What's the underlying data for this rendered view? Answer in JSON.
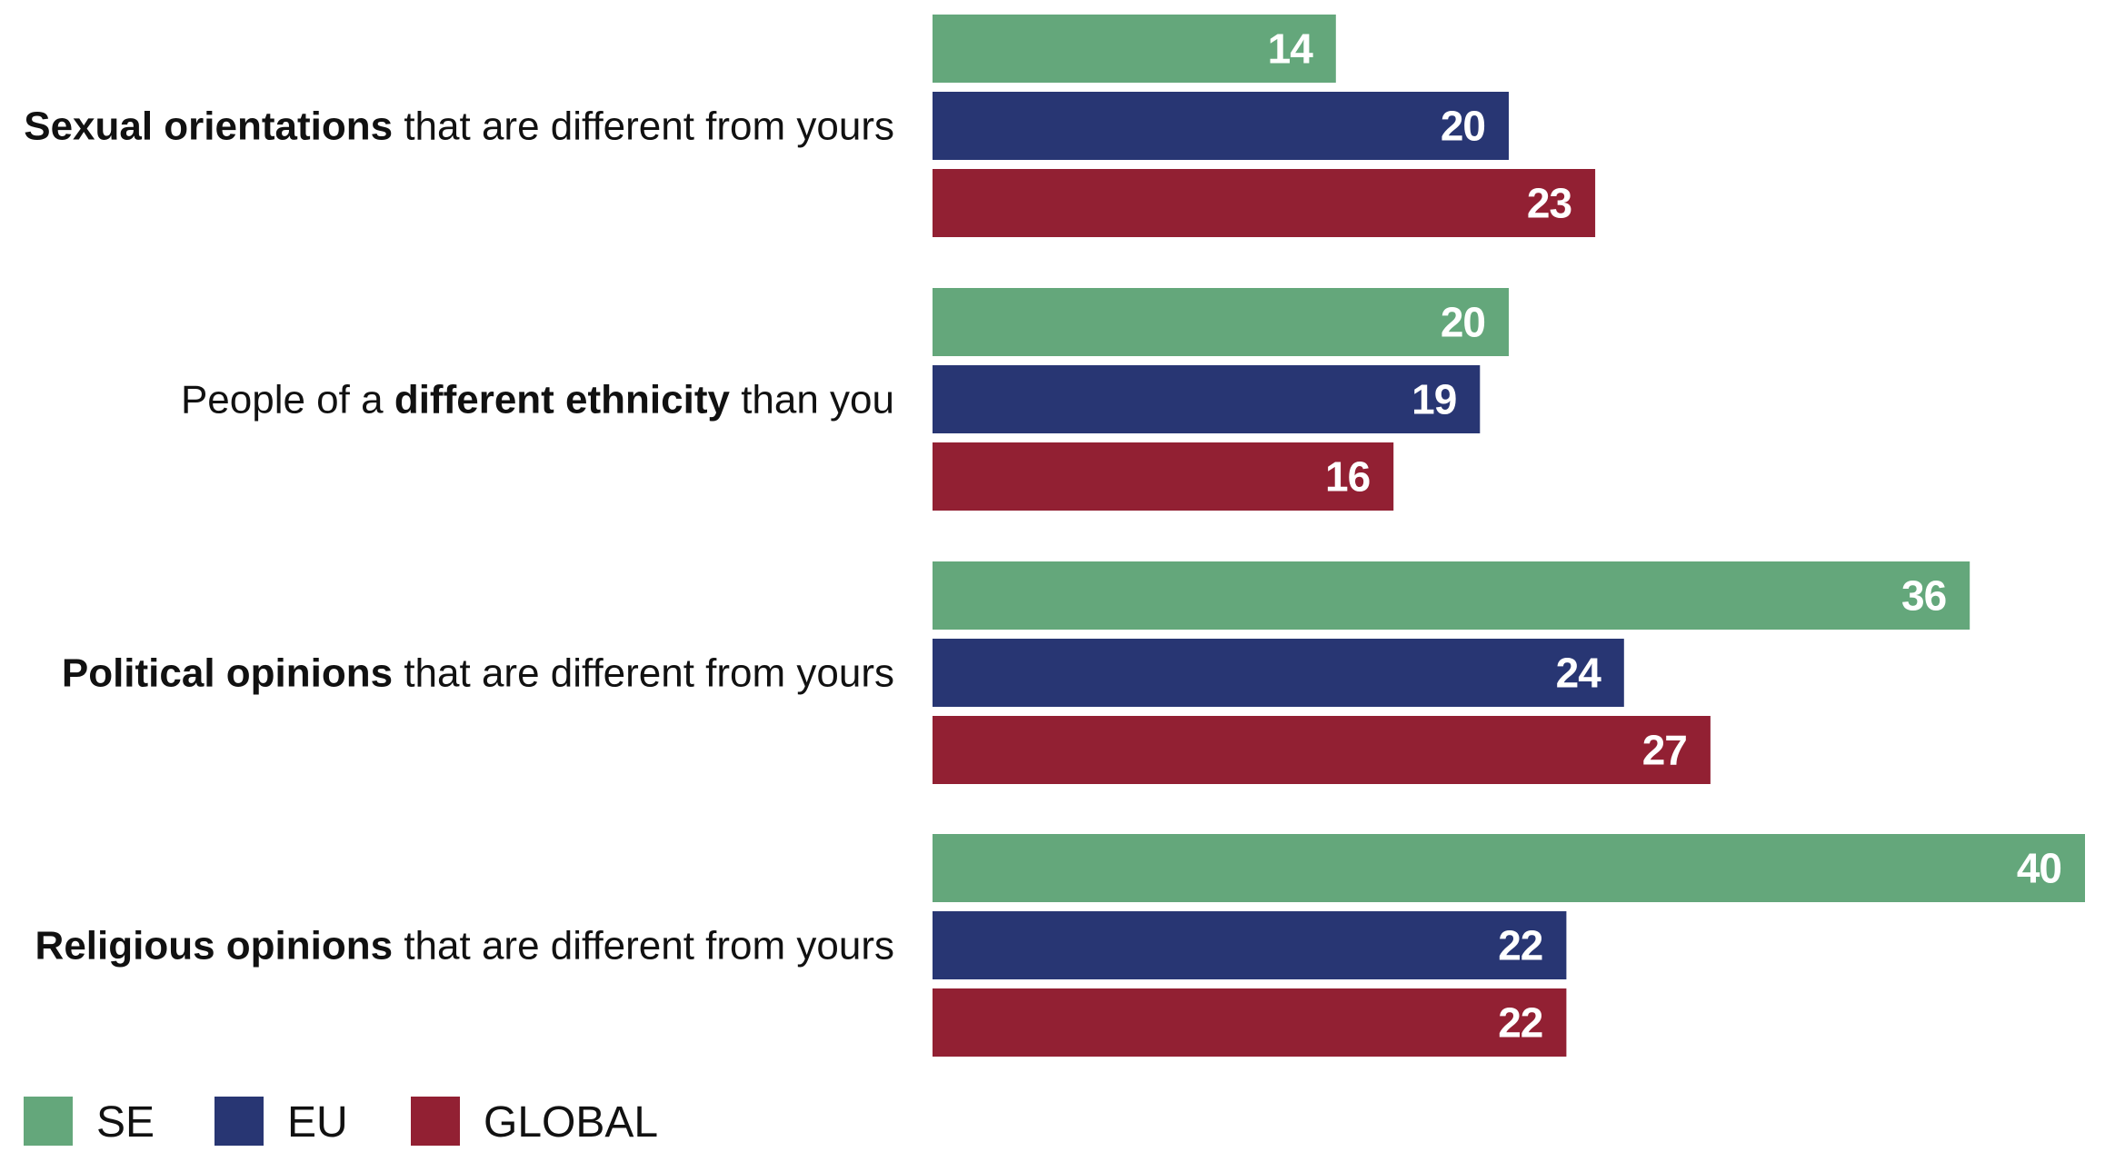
{
  "chart_data": {
    "type": "bar",
    "orientation": "horizontal",
    "categories": [
      [
        {
          "text": "Sexual orientations",
          "bold": true
        },
        {
          "text": " that are different from yours",
          "bold": false
        }
      ],
      [
        {
          "text": "People of a ",
          "bold": false
        },
        {
          "text": "different ethnicity",
          "bold": true
        },
        {
          "text": " than you",
          "bold": false
        }
      ],
      [
        {
          "text": "Political opinions",
          "bold": true
        },
        {
          "text": " that are different from yours",
          "bold": false
        }
      ],
      [
        {
          "text": "Religious opinions",
          "bold": true
        },
        {
          "text": " that are different from yours",
          "bold": false
        }
      ]
    ],
    "series": [
      {
        "name": "SE",
        "color": "#64A77B",
        "values": [
          14,
          20,
          36,
          40
        ]
      },
      {
        "name": "EU",
        "color": "#283673",
        "values": [
          20,
          19,
          24,
          22
        ]
      },
      {
        "name": "GLOBAL",
        "color": "#922033",
        "values": [
          23,
          16,
          27,
          22
        ]
      }
    ],
    "xlim": [
      0,
      40
    ],
    "grid": false,
    "axes_visible": false,
    "data_labels": true,
    "legend_position": "bottom-left",
    "title": "",
    "xlabel": "",
    "ylabel": ""
  }
}
